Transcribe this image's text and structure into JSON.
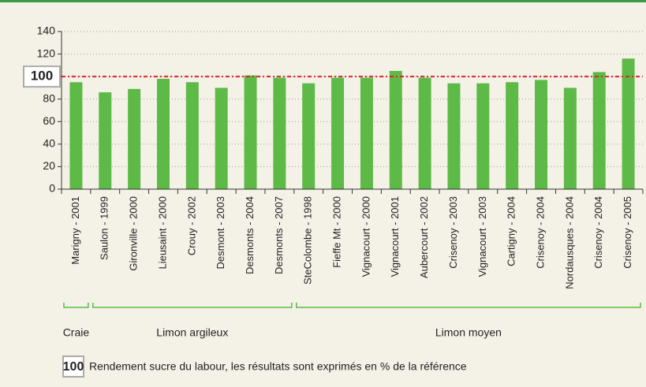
{
  "chart_data": {
    "type": "bar",
    "categories": [
      "Marigny - 2001",
      "Saulon - 1999",
      "Gironville - 2000",
      "Lieusaint - 2000",
      "Crouy - 2002",
      "Desmont - 2003",
      "Desmonts - 2004",
      "Desmonts - 2007",
      "SteColombe - 1998",
      "Fieffe Mt - 2000",
      "Vignacourt - 2000",
      "Vignacourt - 2001",
      "Aubercourt - 2002",
      "Crisenoy - 2003",
      "Vignacourt - 2003",
      "Cartigny - 2004",
      "Crisenoy - 2004",
      "Nordausques - 2004",
      "Crisenoy - 2004",
      "Crisenoy - 2005"
    ],
    "values": [
      95,
      86,
      89,
      98,
      95,
      90,
      101,
      99,
      94,
      99,
      99,
      105,
      99,
      94,
      94,
      95,
      97,
      90,
      104,
      116
    ],
    "color": "#5dba47",
    "ylim": [
      0,
      140
    ],
    "yticks": [
      0,
      20,
      40,
      60,
      80,
      100,
      120,
      140
    ],
    "grid": true,
    "reference": 100,
    "groups": [
      {
        "label": "Craie",
        "count": 1
      },
      {
        "label": "Limon argileux",
        "count": 7
      },
      {
        "label": "Limon moyen",
        "count": 12
      }
    ],
    "legend_key": 100,
    "legend_text": "Rendement sucre du labour, les résultats sont exprimés en % de la référence"
  }
}
